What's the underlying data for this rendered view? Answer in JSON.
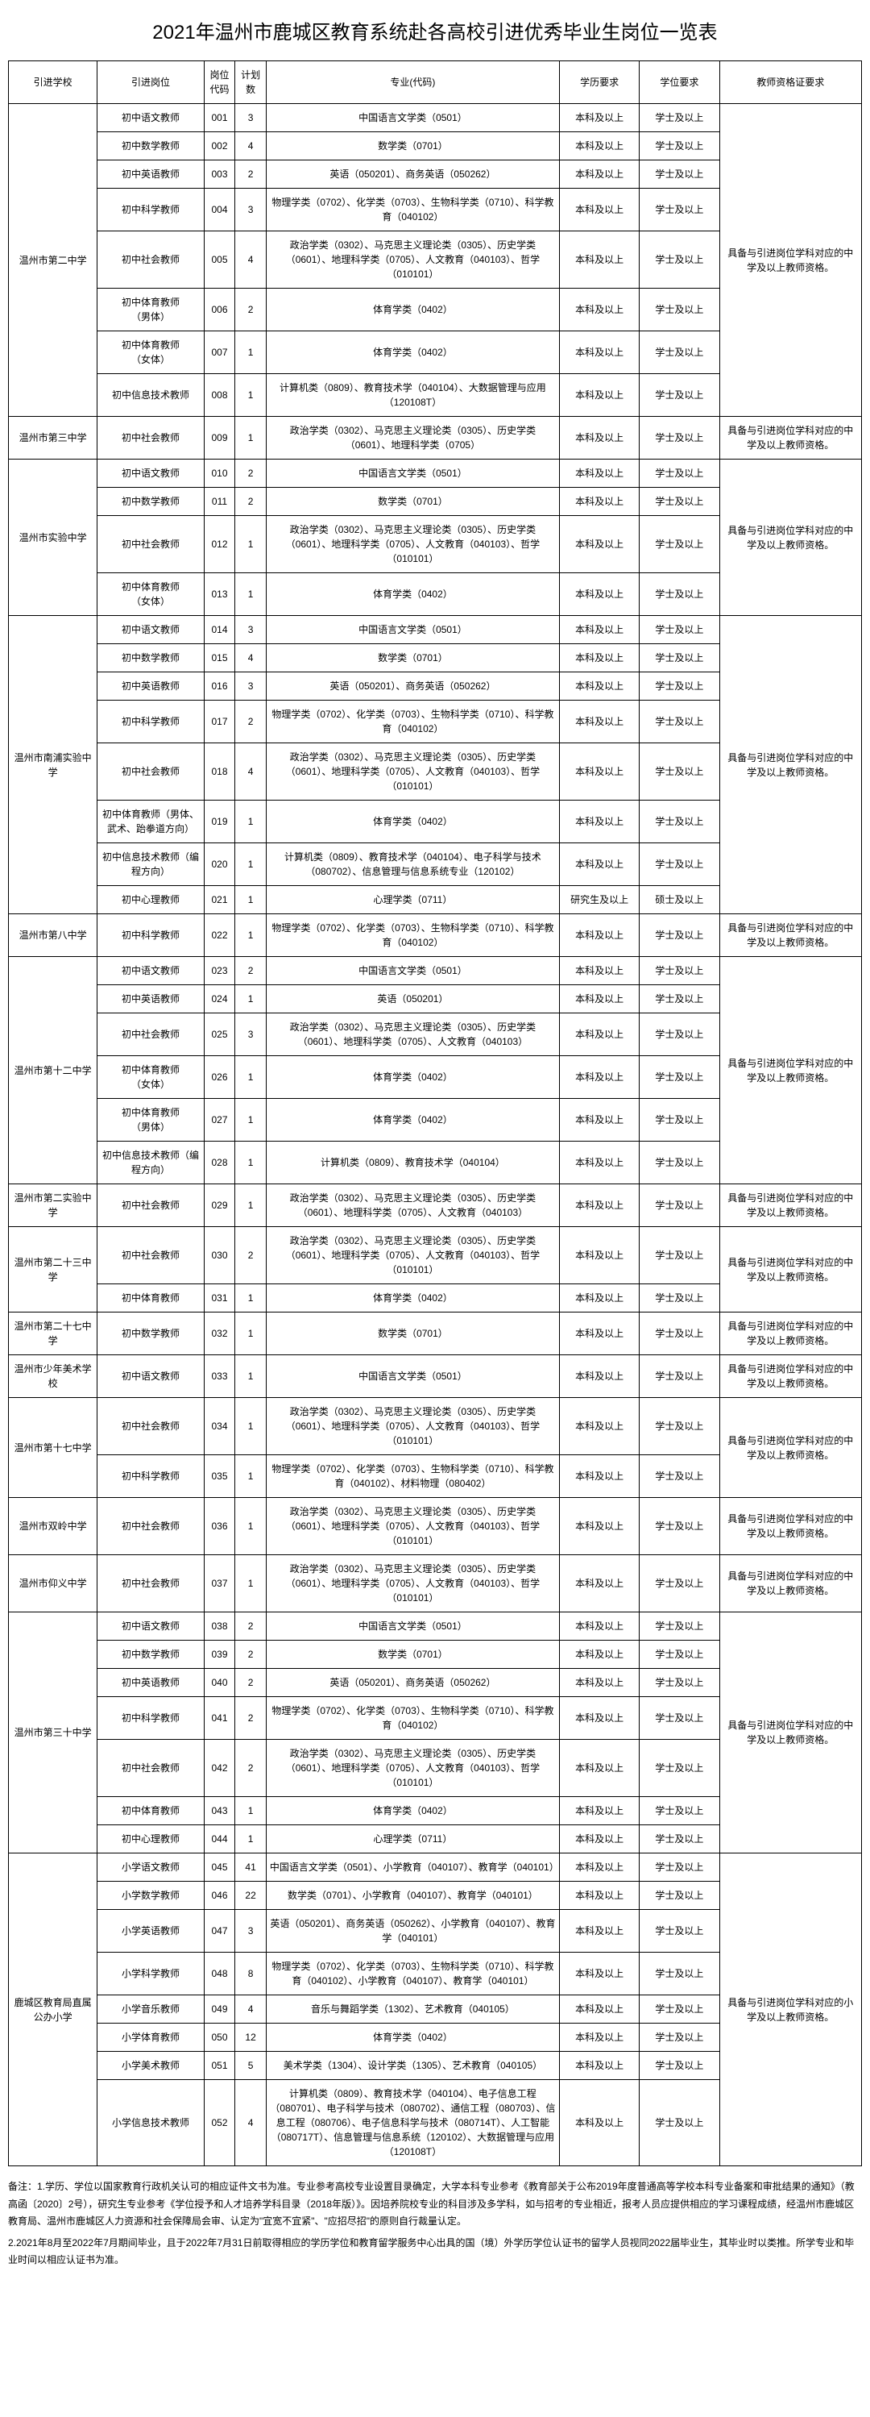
{
  "title": "2021年温州市鹿城区教育系统赴各高校引进优秀毕业生岗位一览表",
  "headers": [
    "引进学校",
    "引进岗位",
    "岗位\n代码",
    "计划\n数",
    "专业(代码)",
    "学历要求",
    "学位要求",
    "教师资格证要求"
  ],
  "cert_jr": "具备与引进岗位学科对应的中学及以上教师资格。",
  "cert_pri": "具备与引进岗位学科对应的小学及以上教师资格。",
  "edu_bk": "本科及以上",
  "edu_yjs": "研究生及以上",
  "deg_xs": "学士及以上",
  "deg_ss": "硕士及以上",
  "rows": [
    {
      "school": "温州市第二中学",
      "school_rowspan": 8,
      "cert_rowspan": 8,
      "pos": "初中语文教师",
      "code": "001",
      "cnt": "3",
      "major": "中国语言文学类（0501）",
      "edu": "edu_bk",
      "deg": "deg_xs",
      "cert": "cert_jr"
    },
    {
      "pos": "初中数学教师",
      "code": "002",
      "cnt": "4",
      "major": "数学类（0701）",
      "edu": "edu_bk",
      "deg": "deg_xs"
    },
    {
      "pos": "初中英语教师",
      "code": "003",
      "cnt": "2",
      "major": "英语（050201）、商务英语（050262）",
      "edu": "edu_bk",
      "deg": "deg_xs"
    },
    {
      "pos": "初中科学教师",
      "code": "004",
      "cnt": "3",
      "major": "物理学类（0702）、化学类（0703）、生物科学类（0710）、科学教育（040102）",
      "edu": "edu_bk",
      "deg": "deg_xs"
    },
    {
      "pos": "初中社会教师",
      "code": "005",
      "cnt": "4",
      "major": "政治学类（0302）、马克思主义理论类（0305）、历史学类（0601）、地理科学类（0705）、人文教育（040103）、哲学（010101）",
      "edu": "edu_bk",
      "deg": "deg_xs"
    },
    {
      "pos": "初中体育教师\n（男体）",
      "code": "006",
      "cnt": "2",
      "major": "体育学类（0402）",
      "edu": "edu_bk",
      "deg": "deg_xs"
    },
    {
      "pos": "初中体育教师\n（女体）",
      "code": "007",
      "cnt": "1",
      "major": "体育学类（0402）",
      "edu": "edu_bk",
      "deg": "deg_xs"
    },
    {
      "pos": "初中信息技术教师",
      "code": "008",
      "cnt": "1",
      "major": "计算机类（0809）、教育技术学（040104）、大数据管理与应用（120108T）",
      "edu": "edu_bk",
      "deg": "deg_xs"
    },
    {
      "school": "温州市第三中学",
      "school_rowspan": 1,
      "cert_rowspan": 1,
      "pos": "初中社会教师",
      "code": "009",
      "cnt": "1",
      "major": "政治学类（0302）、马克思主义理论类（0305）、历史学类（0601）、地理科学类（0705）",
      "edu": "edu_bk",
      "deg": "deg_xs",
      "cert": "cert_jr"
    },
    {
      "school": "温州市实验中学",
      "school_rowspan": 4,
      "cert_rowspan": 4,
      "pos": "初中语文教师",
      "code": "010",
      "cnt": "2",
      "major": "中国语言文学类（0501）",
      "edu": "edu_bk",
      "deg": "deg_xs",
      "cert": "cert_jr"
    },
    {
      "pos": "初中数学教师",
      "code": "011",
      "cnt": "2",
      "major": "数学类（0701）",
      "edu": "edu_bk",
      "deg": "deg_xs"
    },
    {
      "pos": "初中社会教师",
      "code": "012",
      "cnt": "1",
      "major": "政治学类（0302）、马克思主义理论类（0305）、历史学类（0601）、地理科学类（0705）、人文教育（040103）、哲学（010101）",
      "edu": "edu_bk",
      "deg": "deg_xs"
    },
    {
      "pos": "初中体育教师\n（女体）",
      "code": "013",
      "cnt": "1",
      "major": "体育学类（0402）",
      "edu": "edu_bk",
      "deg": "deg_xs"
    },
    {
      "school": "温州市南浦实验中学",
      "school_rowspan": 8,
      "cert_rowspan": 8,
      "pos": "初中语文教师",
      "code": "014",
      "cnt": "3",
      "major": "中国语言文学类（0501）",
      "edu": "edu_bk",
      "deg": "deg_xs",
      "cert": "cert_jr"
    },
    {
      "pos": "初中数学教师",
      "code": "015",
      "cnt": "4",
      "major": "数学类（0701）",
      "edu": "edu_bk",
      "deg": "deg_xs"
    },
    {
      "pos": "初中英语教师",
      "code": "016",
      "cnt": "3",
      "major": "英语（050201）、商务英语（050262）",
      "edu": "edu_bk",
      "deg": "deg_xs"
    },
    {
      "pos": "初中科学教师",
      "code": "017",
      "cnt": "2",
      "major": "物理学类（0702）、化学类（0703）、生物科学类（0710）、科学教育（040102）",
      "edu": "edu_bk",
      "deg": "deg_xs"
    },
    {
      "pos": "初中社会教师",
      "code": "018",
      "cnt": "4",
      "major": "政治学类（0302）、马克思主义理论类（0305）、历史学类（0601）、地理科学类（0705）、人文教育（040103）、哲学（010101）",
      "edu": "edu_bk",
      "deg": "deg_xs"
    },
    {
      "pos": "初中体育教师（男体、武术、跆拳道方向）",
      "code": "019",
      "cnt": "1",
      "major": "体育学类（0402）",
      "edu": "edu_bk",
      "deg": "deg_xs"
    },
    {
      "pos": "初中信息技术教师（编程方向）",
      "code": "020",
      "cnt": "1",
      "major": "计算机类（0809）、教育技术学（040104）、电子科学与技术（080702）、信息管理与信息系统专业（120102）",
      "edu": "edu_bk",
      "deg": "deg_xs"
    },
    {
      "pos": "初中心理教师",
      "code": "021",
      "cnt": "1",
      "major": "心理学类（0711）",
      "edu": "edu_yjs",
      "deg": "deg_ss"
    },
    {
      "school": "温州市第八中学",
      "school_rowspan": 1,
      "cert_rowspan": 1,
      "pos": "初中科学教师",
      "code": "022",
      "cnt": "1",
      "major": "物理学类（0702）、化学类（0703）、生物科学类（0710）、科学教育（040102）",
      "edu": "edu_bk",
      "deg": "deg_xs",
      "cert": "cert_jr"
    },
    {
      "school": "温州市第十二中学",
      "school_rowspan": 6,
      "cert_rowspan": 6,
      "pos": "初中语文教师",
      "code": "023",
      "cnt": "2",
      "major": "中国语言文学类（0501）",
      "edu": "edu_bk",
      "deg": "deg_xs",
      "cert": "cert_jr"
    },
    {
      "pos": "初中英语教师",
      "code": "024",
      "cnt": "1",
      "major": "英语（050201）",
      "edu": "edu_bk",
      "deg": "deg_xs"
    },
    {
      "pos": "初中社会教师",
      "code": "025",
      "cnt": "3",
      "major": "政治学类（0302）、马克思主义理论类（0305）、历史学类（0601）、地理科学类（0705）、人文教育（040103）",
      "edu": "edu_bk",
      "deg": "deg_xs"
    },
    {
      "pos": "初中体育教师\n（女体）",
      "code": "026",
      "cnt": "1",
      "major": "体育学类（0402）",
      "edu": "edu_bk",
      "deg": "deg_xs"
    },
    {
      "pos": "初中体育教师\n（男体）",
      "code": "027",
      "cnt": "1",
      "major": "体育学类（0402）",
      "edu": "edu_bk",
      "deg": "deg_xs"
    },
    {
      "pos": "初中信息技术教师（编程方向）",
      "code": "028",
      "cnt": "1",
      "major": "计算机类（0809）、教育技术学（040104）",
      "edu": "edu_bk",
      "deg": "deg_xs"
    },
    {
      "school": "温州市第二实验中学",
      "school_rowspan": 1,
      "cert_rowspan": 1,
      "pos": "初中社会教师",
      "code": "029",
      "cnt": "1",
      "major": "政治学类（0302）、马克思主义理论类（0305）、历史学类（0601）、地理科学类（0705）、人文教育（040103）",
      "edu": "edu_bk",
      "deg": "deg_xs",
      "cert": "cert_jr"
    },
    {
      "school": "温州市第二十三中学",
      "school_rowspan": 2,
      "cert_rowspan": 2,
      "pos": "初中社会教师",
      "code": "030",
      "cnt": "2",
      "major": "政治学类（0302）、马克思主义理论类（0305）、历史学类（0601）、地理科学类（0705）、人文教育（040103）、哲学（010101）",
      "edu": "edu_bk",
      "deg": "deg_xs",
      "cert": "cert_jr"
    },
    {
      "pos": "初中体育教师",
      "code": "031",
      "cnt": "1",
      "major": "体育学类（0402）",
      "edu": "edu_bk",
      "deg": "deg_xs"
    },
    {
      "school": "温州市第二十七中学",
      "school_rowspan": 1,
      "cert_rowspan": 1,
      "pos": "初中数学教师",
      "code": "032",
      "cnt": "1",
      "major": "数学类（0701）",
      "edu": "edu_bk",
      "deg": "deg_xs",
      "cert": "cert_jr"
    },
    {
      "school": "温州市少年美术学校",
      "school_rowspan": 1,
      "cert_rowspan": 1,
      "pos": "初中语文教师",
      "code": "033",
      "cnt": "1",
      "major": "中国语言文学类（0501）",
      "edu": "edu_bk",
      "deg": "deg_xs",
      "cert": "cert_jr"
    },
    {
      "school": "温州市第十七中学",
      "school_rowspan": 2,
      "cert_rowspan": 2,
      "pos": "初中社会教师",
      "code": "034",
      "cnt": "1",
      "major": "政治学类（0302）、马克思主义理论类（0305）、历史学类（0601）、地理科学类（0705）、人文教育（040103）、哲学（010101）",
      "edu": "edu_bk",
      "deg": "deg_xs",
      "cert": "cert_jr"
    },
    {
      "pos": "初中科学教师",
      "code": "035",
      "cnt": "1",
      "major": "物理学类（0702）、化学类（0703）、生物科学类（0710）、科学教育（040102）、材料物理（080402）",
      "edu": "edu_bk",
      "deg": "deg_xs"
    },
    {
      "school": "温州市双岭中学",
      "school_rowspan": 1,
      "cert_rowspan": 1,
      "pos": "初中社会教师",
      "code": "036",
      "cnt": "1",
      "major": "政治学类（0302）、马克思主义理论类（0305）、历史学类（0601）、地理科学类（0705）、人文教育（040103）、哲学（010101）",
      "edu": "edu_bk",
      "deg": "deg_xs",
      "cert": "cert_jr"
    },
    {
      "school": "温州市仰义中学",
      "school_rowspan": 1,
      "cert_rowspan": 1,
      "pos": "初中社会教师",
      "code": "037",
      "cnt": "1",
      "major": "政治学类（0302）、马克思主义理论类（0305）、历史学类（0601）、地理科学类（0705）、人文教育（040103）、哲学（010101）",
      "edu": "edu_bk",
      "deg": "deg_xs",
      "cert": "cert_jr"
    },
    {
      "school": "温州市第三十中学",
      "school_rowspan": 7,
      "cert_rowspan": 7,
      "pos": "初中语文教师",
      "code": "038",
      "cnt": "2",
      "major": "中国语言文学类（0501）",
      "edu": "edu_bk",
      "deg": "deg_xs",
      "cert": "cert_jr"
    },
    {
      "pos": "初中数学教师",
      "code": "039",
      "cnt": "2",
      "major": "数学类（0701）",
      "edu": "edu_bk",
      "deg": "deg_xs"
    },
    {
      "pos": "初中英语教师",
      "code": "040",
      "cnt": "2",
      "major": "英语（050201）、商务英语（050262）",
      "edu": "edu_bk",
      "deg": "deg_xs"
    },
    {
      "pos": "初中科学教师",
      "code": "041",
      "cnt": "2",
      "major": "物理学类（0702）、化学类（0703）、生物科学类（0710）、科学教育（040102）",
      "edu": "edu_bk",
      "deg": "deg_xs"
    },
    {
      "pos": "初中社会教师",
      "code": "042",
      "cnt": "2",
      "major": "政治学类（0302）、马克思主义理论类（0305）、历史学类（0601）、地理科学类（0705）、人文教育（040103）、哲学（010101）",
      "edu": "edu_bk",
      "deg": "deg_xs"
    },
    {
      "pos": "初中体育教师",
      "code": "043",
      "cnt": "1",
      "major": "体育学类（0402）",
      "edu": "edu_bk",
      "deg": "deg_xs"
    },
    {
      "pos": "初中心理教师",
      "code": "044",
      "cnt": "1",
      "major": "心理学类（0711）",
      "edu": "edu_bk",
      "deg": "deg_xs"
    },
    {
      "school": "鹿城区教育局直属公办小学",
      "school_rowspan": 8,
      "cert_rowspan": 8,
      "pos": "小学语文教师",
      "code": "045",
      "cnt": "41",
      "major": "中国语言文学类（0501）、小学教育（040107）、教育学（040101）",
      "edu": "edu_bk",
      "deg": "deg_xs",
      "cert": "cert_pri"
    },
    {
      "pos": "小学数学教师",
      "code": "046",
      "cnt": "22",
      "major": "数学类（0701）、小学教育（040107）、教育学（040101）",
      "edu": "edu_bk",
      "deg": "deg_xs"
    },
    {
      "pos": "小学英语教师",
      "code": "047",
      "cnt": "3",
      "major": "英语（050201）、商务英语（050262）、小学教育（040107）、教育学（040101）",
      "edu": "edu_bk",
      "deg": "deg_xs"
    },
    {
      "pos": "小学科学教师",
      "code": "048",
      "cnt": "8",
      "major": "物理学类（0702）、化学类（0703）、生物科学类（0710）、科学教育（040102）、小学教育（040107）、教育学（040101）",
      "edu": "edu_bk",
      "deg": "deg_xs"
    },
    {
      "pos": "小学音乐教师",
      "code": "049",
      "cnt": "4",
      "major": "音乐与舞蹈学类（1302）、艺术教育（040105）",
      "edu": "edu_bk",
      "deg": "deg_xs"
    },
    {
      "pos": "小学体育教师",
      "code": "050",
      "cnt": "12",
      "major": "体育学类（0402）",
      "edu": "edu_bk",
      "deg": "deg_xs"
    },
    {
      "pos": "小学美术教师",
      "code": "051",
      "cnt": "5",
      "major": "美术学类（1304）、设计学类（1305）、艺术教育（040105）",
      "edu": "edu_bk",
      "deg": "deg_xs"
    },
    {
      "pos": "小学信息技术教师",
      "code": "052",
      "cnt": "4",
      "major": "计算机类（0809）、教育技术学（040104）、电子信息工程（080701）、电子科学与技术（080702）、通信工程（080703）、信息工程（080706）、电子信息科学与技术（080714T）、人工智能（080717T）、信息管理与信息系统（120102）、大数据管理与应用（120108T）",
      "edu": "edu_bk",
      "deg": "deg_xs"
    }
  ],
  "notes": [
    "备注：1.学历、学位以国家教育行政机关认可的相应证件文书为准。专业参考高校专业设置目录确定，大学本科专业参考《教育部关于公布2019年度普通高等学校本科专业备案和审批结果的通知》（教高函〔2020〕2号），研究生专业参考《学位授予和人才培养学科目录（2018年版）》。因培养院校专业的科目涉及多学科，如与招考的专业相近，报考人员应提供相应的学习课程成绩，经温州市鹿城区教育局、温州市鹿城区人力资源和社会保障局会审、认定为\"宜宽不宜紧\"、\"应招尽招\"的原则自行裁量认定。",
    "2.2021年8月至2022年7月期间毕业，且于2022年7月31日前取得相应的学历学位和教育留学服务中心出具的国（境）外学历学位认证书的留学人员视同2022届毕业生，其毕业时以类推。所学专业和毕业时间以相应认证书为准。"
  ]
}
